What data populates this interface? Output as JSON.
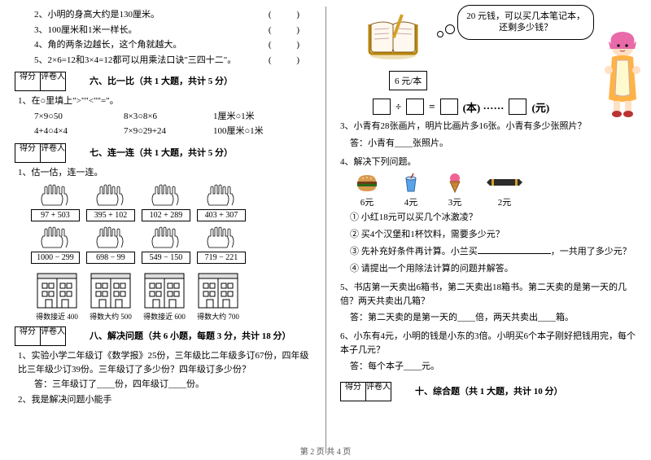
{
  "left": {
    "tf": [
      {
        "n": "2、",
        "t": "小明的身高大约是130厘米。"
      },
      {
        "n": "3、",
        "t": "100厘米和1米一样长。"
      },
      {
        "n": "4、",
        "t": "角的两条边越长，这个角就越大。"
      },
      {
        "n": "5、",
        "t": "2×6=12和3×4=12都可以用乘法口诀\"三四十二\"。"
      }
    ],
    "paren": "(   )",
    "score_a": "得分",
    "score_b": "评卷人",
    "sec6": "六、比一比（共 1 大题，共计 5 分）",
    "p6_1": "1、在○里填上\">\"\"<\"\"=\"。",
    "p6_rows": [
      [
        "7×9○50",
        "8×3○8×6",
        "1厘米○1米"
      ],
      [
        "4+4○4×4",
        "7×9○29+24",
        "100厘米○1米"
      ]
    ],
    "sec7": "七、连一连（共 1 大题，共计 5 分）",
    "p7_1": "1、估一估，连一连。",
    "hands1": [
      "97 + 503",
      "395 + 102",
      "102 + 289",
      "403 + 307"
    ],
    "hands2": [
      "1000 − 299",
      "698 − 99",
      "549 − 150",
      "719 − 221"
    ],
    "builds": [
      "得数接近 400",
      "得数大约 500",
      "得数接近 600",
      "得数大约 700"
    ],
    "sec8": "八、解决问题（共 6 小题，每题 3 分，共计 18 分）",
    "p8_1": "1、实验小学二年级订《数学报》25份，三年级比二年级多订67份，四年级比三年级少订39份。三年级订了多少份？四年级订多少份？",
    "p8_1a": "答：三年级订了____份，四年级订____份。",
    "p8_2": "2、我是解决问题小能手"
  },
  "right": {
    "bubble_l1": "20 元钱，可以买几本笔记本，",
    "bubble_l2": "还剩多少钱？",
    "price": "6 元/本",
    "eq_parts": [
      "÷",
      "=",
      "(本) ······",
      "(元)"
    ],
    "q3": "3、小青有28张画片，明片比画片多16张。小青有多少张照片？",
    "q3a": "答：小青有____张照片。",
    "q4": "4、解决下列问题。",
    "foods": [
      {
        "p": "6元"
      },
      {
        "p": "4元"
      },
      {
        "p": "3元"
      },
      {
        "p": "2元"
      }
    ],
    "q4_1": "① 小红18元可以买几个冰激凌？",
    "q4_2": "② 买4个汉堡和1杯饮料，需要多少元？",
    "q4_3a": "③ 先补充好条件再计算。小兰买",
    "q4_3b": "，一共用了多少元？",
    "q4_4": "④ 请提出一个用除法计算的问题并解答。",
    "q5": "5、书店第一天卖出6箱书，第二天卖出18箱书。第二天卖的是第一天的几倍？两天共卖出几箱？",
    "q5a": "答：第二天卖的是第一天的____倍，两天共卖出____箱。",
    "q6": "6、小东有4元，小明的钱是小东的3倍。小明买6个本子刚好把钱用完，每个本子几元？",
    "q6a": "答：每个本子____元。",
    "sec10": "十、综合题（共 1 大题，共计 10 分）",
    "score_a": "得分",
    "score_b": "评卷人"
  },
  "footer": "第 2 页  共 4 页",
  "colors": {
    "notebook_cover": "#b8860b",
    "notebook_page": "#fff8ee",
    "girl_hair": "#e86aa8",
    "girl_dress": "#ffb347",
    "girl_apron": "#fffacd",
    "burger_top": "#d99a4e",
    "burger_mid": "#6b3e1a",
    "drink_cup": "#5aa3e8",
    "ice_cone": "#d38b3d",
    "ice_ball": "#f06292",
    "candy_wrap": "#2b2b2b",
    "candy_band": "#d4a027"
  }
}
